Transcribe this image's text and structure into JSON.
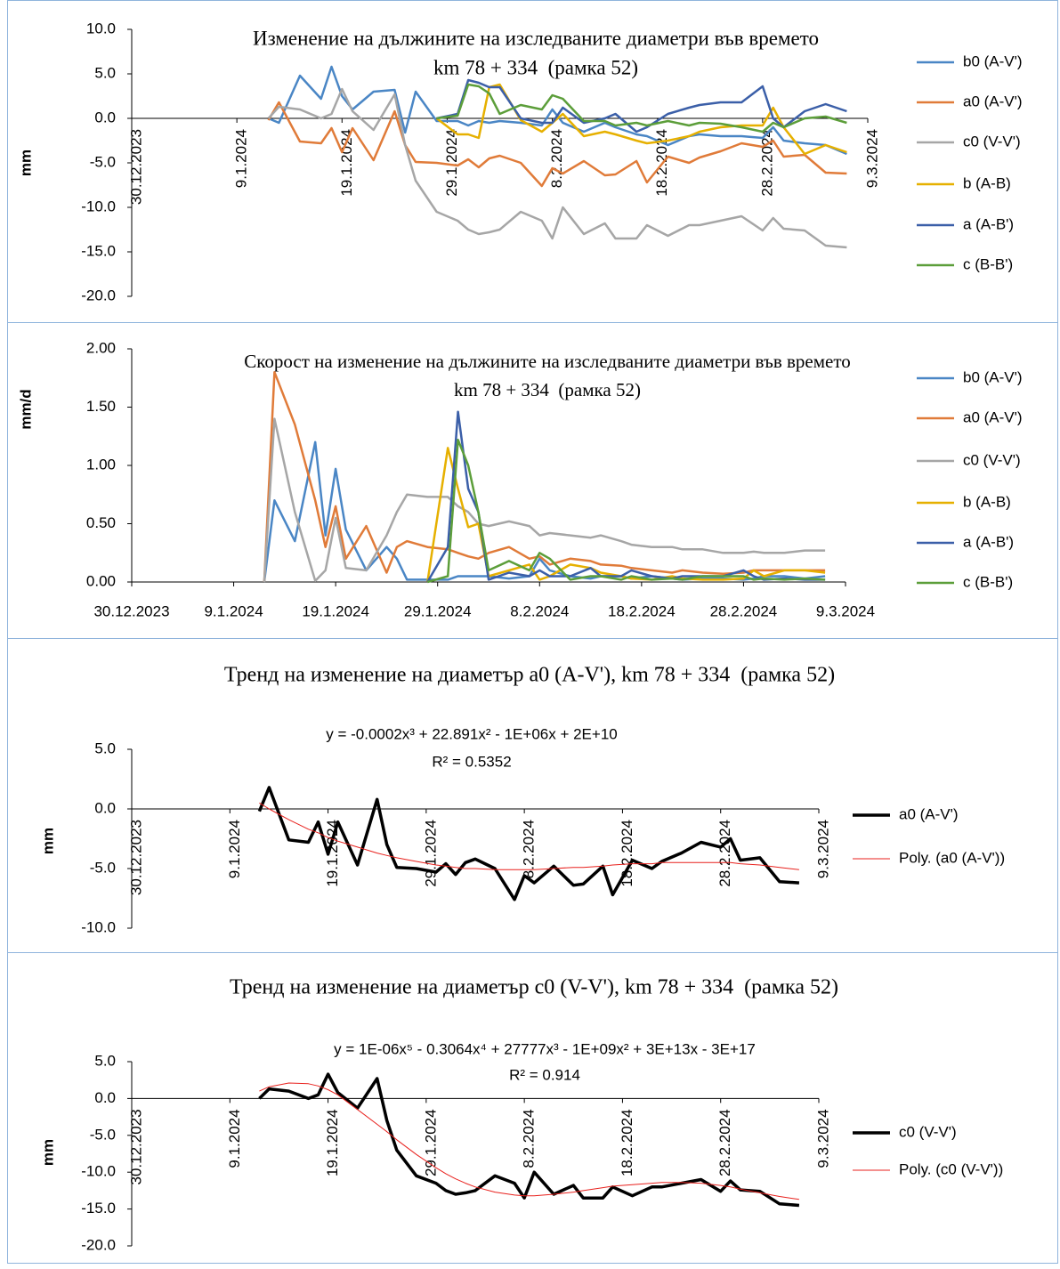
{
  "chart_data": [
    {
      "type": "line",
      "title": "Изменение на дължините на изследваните диаметри във времето",
      "subtitle": "km 78 + 334  (рамка 52)",
      "y_label": "mm",
      "x": [
        "12.1.2024",
        "13.1.2024",
        "15.1.2024",
        "17.1.2024",
        "18.1.2024",
        "19.1.2024",
        "20.1.2024",
        "22.1.2024",
        "24.1.2024",
        "25.1.2024",
        "26.1.2024",
        "28.1.2024",
        "30.1.2024",
        "31.1.2024",
        "1.2.2024",
        "2.2.2024",
        "3.2.2024",
        "5.2.2024",
        "7.2.2024",
        "8.2.2024",
        "9.2.2024",
        "11.2.2024",
        "13.2.2024",
        "14.2.2024",
        "16.2.2024",
        "17.2.2024",
        "19.2.2024",
        "21.2.2024",
        "22.2.2024",
        "24.2.2024",
        "26.2.2024",
        "28.2.2024",
        "29.2.2024",
        "1.3.2024",
        "3.3.2024",
        "5.3.2024",
        "7.3.2024"
      ],
      "xlim": [
        "30.12.2023",
        "9.3.2024"
      ],
      "xticks": [
        "30.12.2023",
        "9.1.2024",
        "19.1.2024",
        "29.1.2024",
        "8.2.2024",
        "18.2.2024",
        "28.2.2024",
        "9.3.2024"
      ],
      "ylim": [
        -20,
        10
      ],
      "yticks": [
        {
          "value": -20,
          "label": "-20.0"
        },
        {
          "value": -15,
          "label": "-15.0"
        },
        {
          "value": -10,
          "label": "-10.0"
        },
        {
          "value": -5,
          "label": "-5.0"
        },
        {
          "value": 0,
          "label": "0.0"
        },
        {
          "value": 5,
          "label": "5.0"
        },
        {
          "value": 10,
          "label": "10.0"
        }
      ],
      "series": [
        {
          "name": "b0 (A-V')",
          "color": "#4a86c5",
          "values": [
            0,
            -0.5,
            4.8,
            2.2,
            5.8,
            2.5,
            1.0,
            3.0,
            3.2,
            -1.6,
            3.0,
            -0.3,
            -0.3,
            -0.8,
            -0.3,
            -0.5,
            -0.3,
            -0.5,
            -0.8,
            1.0,
            -0.5,
            -1.5,
            -0.5,
            -1.0,
            -1.8,
            -2.0,
            -3.0,
            -2.0,
            -1.8,
            -2.0,
            -2.0,
            -2.2,
            -1.0,
            -2.5,
            -2.8,
            -3.0,
            -4.0
          ]
        },
        {
          "name": "a0 (A-V')",
          "color": "#e07b39",
          "values": [
            -0.2,
            1.8,
            -2.6,
            -2.8,
            -1.1,
            -3.8,
            -1.1,
            -4.7,
            0.8,
            -3.0,
            -4.9,
            -5.0,
            -5.3,
            -4.6,
            -5.5,
            -4.5,
            -4.2,
            -5.0,
            -7.6,
            -5.6,
            -6.2,
            -4.8,
            -6.4,
            -6.3,
            -4.8,
            -7.2,
            -4.3,
            -5.0,
            -4.4,
            -3.7,
            -2.8,
            -3.2,
            -2.5,
            -4.3,
            -4.1,
            -6.1,
            -6.2
          ]
        },
        {
          "name": "c0 (V-V')",
          "color": "#a6a6a6",
          "values": [
            0,
            1.3,
            1.0,
            0,
            0.5,
            3.3,
            0.8,
            -1.3,
            2.7,
            -3.0,
            -7.0,
            -10.5,
            -11.5,
            -12.5,
            -13.0,
            -12.8,
            -12.5,
            -10.5,
            -11.5,
            -13.5,
            -10.0,
            -13.0,
            -11.8,
            -13.5,
            -13.5,
            -12.0,
            -13.2,
            -12.0,
            -12.0,
            -11.5,
            -11.0,
            -12.6,
            -11.2,
            -12.4,
            -12.6,
            -14.3,
            -14.5
          ]
        },
        {
          "name": "b (A-B)",
          "color": "#e6b000",
          "values": [
            null,
            null,
            null,
            null,
            null,
            null,
            null,
            null,
            null,
            null,
            null,
            0,
            -1.8,
            -1.8,
            -2.2,
            3.5,
            3.8,
            -0.2,
            -1.5,
            -0.5,
            0.5,
            -2.0,
            -1.5,
            -1.8,
            -2.5,
            -2.8,
            -2.5,
            -2.0,
            -1.5,
            -1.0,
            -0.8,
            -0.8,
            1.2,
            -1.0,
            -4.0,
            -3.0,
            -3.8
          ]
        },
        {
          "name": "a (A-B')",
          "color": "#3b5fa8",
          "values": [
            null,
            null,
            null,
            null,
            null,
            null,
            null,
            null,
            null,
            null,
            null,
            0,
            0.5,
            4.3,
            4.0,
            3.5,
            3.5,
            0,
            -0.5,
            -0.5,
            1.2,
            -0.5,
            0,
            0.5,
            -1.5,
            -1.0,
            0.5,
            1.2,
            1.5,
            1.8,
            1.8,
            3.6,
            0,
            -1.0,
            0.8,
            1.6,
            0.8
          ]
        },
        {
          "name": "c (B-B')",
          "color": "#5c9e3a",
          "values": [
            null,
            null,
            null,
            null,
            null,
            null,
            null,
            null,
            null,
            null,
            null,
            0,
            0.3,
            3.8,
            3.6,
            2.8,
            0.5,
            1.5,
            1.0,
            2.6,
            2.2,
            -0.3,
            -0.3,
            -0.8,
            -0.5,
            -0.8,
            -0.3,
            -0.8,
            -0.5,
            -0.6,
            -1.0,
            -1.5,
            -0.5,
            -1.0,
            0,
            0.2,
            -0.5
          ]
        }
      ]
    },
    {
      "type": "line",
      "title": "Скорост на изменение на дължините на изследваните диаметри във времето",
      "subtitle": "km 78 + 334  (рамка 52)",
      "y_label": "mm/d",
      "x": [
        "12.1.2024",
        "13.1.2024",
        "15.1.2024",
        "17.1.2024",
        "18.1.2024",
        "19.1.2024",
        "20.1.2024",
        "22.1.2024",
        "24.1.2024",
        "25.1.2024",
        "26.1.2024",
        "28.1.2024",
        "30.1.2024",
        "31.1.2024",
        "1.2.2024",
        "2.2.2024",
        "3.2.2024",
        "5.2.2024",
        "7.2.2024",
        "8.2.2024",
        "9.2.2024",
        "11.2.2024",
        "13.2.2024",
        "14.2.2024",
        "16.2.2024",
        "17.2.2024",
        "19.2.2024",
        "21.2.2024",
        "22.2.2024",
        "24.2.2024",
        "26.2.2024",
        "28.2.2024",
        "29.2.2024",
        "1.3.2024",
        "3.3.2024",
        "5.3.2024",
        "7.3.2024"
      ],
      "xlim": [
        "30.12.2023",
        "9.3.2024"
      ],
      "xticks": [
        "30.12.2023",
        "9.1.2024",
        "19.1.2024",
        "29.1.2024",
        "8.2.2024",
        "18.2.2024",
        "28.2.2024",
        "9.3.2024"
      ],
      "ylim": [
        0,
        2
      ],
      "yticks": [
        {
          "value": 0,
          "label": "0.00"
        },
        {
          "value": 0.5,
          "label": "0.50"
        },
        {
          "value": 1,
          "label": "1.00"
        },
        {
          "value": 1.5,
          "label": "1.50"
        },
        {
          "value": 2,
          "label": "2.00"
        }
      ],
      "series": [
        {
          "name": "b0 (A-V')",
          "color": "#4a86c5",
          "values": [
            0,
            0.7,
            0.35,
            1.2,
            0.4,
            0.97,
            0.45,
            0.1,
            0.3,
            0.2,
            0.02,
            0.02,
            0.02,
            0.05,
            0.05,
            0.05,
            0.05,
            0.03,
            0.05,
            0.2,
            0.1,
            0.05,
            0.03,
            0.05,
            0.05,
            0.03,
            0.05,
            0.03,
            0.02,
            0.03,
            0.03,
            0.02,
            0.03,
            0.05,
            0.05,
            0.03,
            0.05
          ]
        },
        {
          "name": "a0 (A-V')",
          "color": "#e07b39",
          "values": [
            0,
            1.8,
            1.35,
            0.7,
            0.3,
            0.65,
            0.2,
            0.48,
            0.08,
            0.3,
            0.35,
            0.3,
            0.28,
            0.25,
            0.22,
            0.2,
            0.25,
            0.3,
            0.2,
            0.22,
            0.15,
            0.2,
            0.18,
            0.15,
            0.14,
            0.12,
            0.1,
            0.08,
            0.1,
            0.08,
            0.07,
            0.08,
            0.1,
            0.1,
            0.1,
            0.1,
            0.1
          ]
        },
        {
          "name": "c0 (V-V')",
          "color": "#a6a6a6",
          "values": [
            0,
            1.4,
            0.6,
            0.01,
            0.1,
            0.55,
            0.12,
            0.1,
            0.4,
            0.6,
            0.75,
            0.73,
            0.73,
            0.65,
            0.6,
            0.5,
            0.48,
            0.52,
            0.48,
            0.4,
            0.42,
            0.4,
            0.38,
            0.4,
            0.35,
            0.32,
            0.3,
            0.3,
            0.28,
            0.28,
            0.25,
            0.25,
            0.26,
            0.25,
            0.25,
            0.27,
            0.27
          ]
        },
        {
          "name": "b (A-B)",
          "color": "#e6b000",
          "values": [
            null,
            null,
            null,
            null,
            null,
            null,
            null,
            null,
            null,
            null,
            null,
            0,
            1.15,
            0.8,
            0.47,
            0.5,
            0.05,
            0.1,
            0.15,
            0.02,
            0.05,
            0.15,
            0.12,
            0.08,
            0.05,
            0.03,
            0.02,
            0.05,
            0.03,
            0.02,
            0.02,
            0.03,
            0.1,
            0.05,
            0.1,
            0.1,
            0.08
          ]
        },
        {
          "name": "a (A-B')",
          "color": "#3b5fa8",
          "values": [
            null,
            null,
            null,
            null,
            null,
            null,
            null,
            null,
            null,
            null,
            null,
            0,
            0.3,
            1.46,
            0.8,
            0.6,
            0.02,
            0.08,
            0.05,
            0.1,
            0.05,
            0.05,
            0.12,
            0.05,
            0.05,
            0.1,
            0.05,
            0.03,
            0.05,
            0.05,
            0.05,
            0.1,
            0.05,
            0.02,
            0.03,
            0.02,
            0.02
          ]
        },
        {
          "name": "c (B-B')",
          "color": "#5c9e3a",
          "values": [
            null,
            null,
            null,
            null,
            null,
            null,
            null,
            null,
            null,
            null,
            null,
            0,
            0.05,
            1.22,
            1.0,
            0.6,
            0.1,
            0.18,
            0.1,
            0.25,
            0.2,
            0.02,
            0.05,
            0.05,
            0.02,
            0.05,
            0.02,
            0.03,
            0.02,
            0.05,
            0.05,
            0.05,
            0.02,
            0.03,
            0.02,
            0.03,
            0.02
          ]
        }
      ]
    },
    {
      "type": "line",
      "title": "Тренд на изменение на диаметър a0 (A-V'), km 78 + 334  (рамка 52)",
      "y_label": "mm",
      "annotations": [
        "y = -0.0002x³ + 22.891x² - 1E+06x + 2E+10",
        "R² = 0.5352"
      ],
      "x": [
        "12.1.2024",
        "13.1.2024",
        "15.1.2024",
        "17.1.2024",
        "18.1.2024",
        "19.1.2024",
        "20.1.2024",
        "22.1.2024",
        "24.1.2024",
        "25.1.2024",
        "26.1.2024",
        "28.1.2024",
        "30.1.2024",
        "31.1.2024",
        "1.2.2024",
        "2.2.2024",
        "3.2.2024",
        "5.2.2024",
        "7.2.2024",
        "8.2.2024",
        "9.2.2024",
        "11.2.2024",
        "13.2.2024",
        "14.2.2024",
        "16.2.2024",
        "17.2.2024",
        "19.2.2024",
        "21.2.2024",
        "22.2.2024",
        "24.2.2024",
        "26.2.2024",
        "28.2.2024",
        "29.2.2024",
        "1.3.2024",
        "3.3.2024",
        "5.3.2024",
        "7.3.2024"
      ],
      "xlim": [
        "30.12.2023",
        "9.3.2024"
      ],
      "xticks": [
        "30.12.2023",
        "9.1.2024",
        "19.1.2024",
        "29.1.2024",
        "8.2.2024",
        "18.2.2024",
        "28.2.2024",
        "9.3.2024"
      ],
      "ylim": [
        -10,
        5
      ],
      "yticks": [
        {
          "value": -10,
          "label": "-10.0"
        },
        {
          "value": -5,
          "label": "-5.0"
        },
        {
          "value": 0,
          "label": "0.0"
        },
        {
          "value": 5,
          "label": "5.0"
        }
      ],
      "series": [
        {
          "name": "a0 (A-V')",
          "color": "#000000",
          "values": [
            -0.2,
            1.8,
            -2.6,
            -2.8,
            -1.1,
            -3.8,
            -1.1,
            -4.7,
            0.8,
            -3.0,
            -4.9,
            -5.0,
            -5.3,
            -4.6,
            -5.5,
            -4.5,
            -4.2,
            -5.0,
            -7.6,
            -5.6,
            -6.2,
            -4.8,
            -6.4,
            -6.3,
            -4.8,
            -7.2,
            -4.3,
            -5.0,
            -4.4,
            -3.7,
            -2.8,
            -3.2,
            -2.5,
            -4.3,
            -4.1,
            -6.1,
            -6.2
          ]
        },
        {
          "name": "Poly. (a0 (A-V'))",
          "color": "#e8211d",
          "values": [
            0.5,
            0.0,
            -0.9,
            -1.7,
            -2.0,
            -2.4,
            -2.7,
            -3.2,
            -3.7,
            -3.9,
            -4.1,
            -4.4,
            -4.7,
            -4.8,
            -4.9,
            -5.0,
            -5.0,
            -5.1,
            -5.1,
            -5.1,
            -5.1,
            -5.0,
            -4.9,
            -4.9,
            -4.8,
            -4.7,
            -4.6,
            -4.6,
            -4.5,
            -4.5,
            -4.5,
            -4.5,
            -4.5,
            -4.6,
            -4.7,
            -4.9,
            -5.1
          ]
        }
      ]
    },
    {
      "type": "line",
      "title": "Тренд на изменение на диаметър c0 (V-V'), km 78 + 334  (рамка 52)",
      "y_label": "mm",
      "annotations": [
        "y = 1E-06x⁵ - 0.3064x⁴ + 27777x³ - 1E+09x² + 3E+13x - 3E+17",
        "R² = 0.914"
      ],
      "x": [
        "12.1.2024",
        "13.1.2024",
        "15.1.2024",
        "17.1.2024",
        "18.1.2024",
        "19.1.2024",
        "20.1.2024",
        "22.1.2024",
        "24.1.2024",
        "25.1.2024",
        "26.1.2024",
        "28.1.2024",
        "30.1.2024",
        "31.1.2024",
        "1.2.2024",
        "2.2.2024",
        "3.2.2024",
        "5.2.2024",
        "7.2.2024",
        "8.2.2024",
        "9.2.2024",
        "11.2.2024",
        "13.2.2024",
        "14.2.2024",
        "16.2.2024",
        "17.2.2024",
        "19.2.2024",
        "21.2.2024",
        "22.2.2024",
        "24.2.2024",
        "26.2.2024",
        "28.2.2024",
        "29.2.2024",
        "1.3.2024",
        "3.3.2024",
        "5.3.2024",
        "7.3.2024"
      ],
      "xlim": [
        "30.12.2023",
        "9.3.2024"
      ],
      "xticks": [
        "30.12.2023",
        "9.1.2024",
        "19.1.2024",
        "29.1.2024",
        "8.2.2024",
        "18.2.2024",
        "28.2.2024",
        "9.3.2024"
      ],
      "ylim": [
        -20,
        5
      ],
      "yticks": [
        {
          "value": -20,
          "label": "-20.0"
        },
        {
          "value": -15,
          "label": "-15.0"
        },
        {
          "value": -10,
          "label": "-10.0"
        },
        {
          "value": -5,
          "label": "-5.0"
        },
        {
          "value": 0,
          "label": "0.0"
        },
        {
          "value": 5,
          "label": "5.0"
        }
      ],
      "series": [
        {
          "name": "c0 (V-V')",
          "color": "#000000",
          "values": [
            0,
            1.3,
            1.0,
            0,
            0.5,
            3.3,
            0.8,
            -1.3,
            2.7,
            -3.0,
            -7.0,
            -10.5,
            -11.5,
            -12.5,
            -13.0,
            -12.8,
            -12.5,
            -10.5,
            -11.5,
            -13.5,
            -10.0,
            -13.0,
            -11.8,
            -13.5,
            -13.5,
            -12.0,
            -13.2,
            -12.0,
            -12.0,
            -11.5,
            -11.0,
            -12.6,
            -11.2,
            -12.4,
            -12.6,
            -14.3,
            -14.5
          ]
        },
        {
          "name": "Poly. (c0 (V-V'))",
          "color": "#e8211d",
          "values": [
            1.0,
            1.6,
            2.1,
            2.0,
            1.7,
            1.2,
            0.5,
            -1.5,
            -3.5,
            -4.5,
            -5.6,
            -7.6,
            -9.4,
            -10.2,
            -10.9,
            -11.5,
            -12.0,
            -12.7,
            -13.1,
            -13.2,
            -13.2,
            -13.0,
            -12.7,
            -12.5,
            -12.1,
            -11.9,
            -11.7,
            -11.5,
            -11.4,
            -11.4,
            -11.5,
            -11.8,
            -12.0,
            -12.3,
            -12.8,
            -13.3,
            -13.7
          ]
        }
      ]
    }
  ]
}
